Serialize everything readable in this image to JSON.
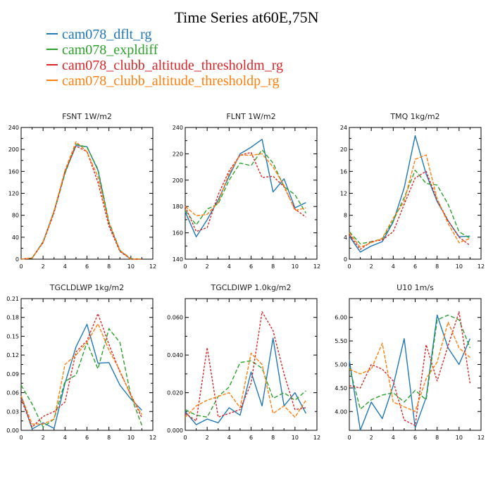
{
  "page": {
    "title": "Time Series at60E,75N"
  },
  "legend": [
    {
      "name": "cam078_dflt_rg",
      "color": "#1f77b4"
    },
    {
      "name": "cam078_expldiff",
      "color": "#2ca02c"
    },
    {
      "name": "cam078_clubb_altitude_thresholdm_rg",
      "color": "#d62728"
    },
    {
      "name": "cam078_clubb_altitude_thresholdp_rg",
      "color": "#ff7f0e"
    }
  ],
  "chart_data": [
    {
      "type": "line",
      "title": "FSNT   1W/m2",
      "x": [
        0,
        1,
        2,
        3,
        4,
        5,
        6,
        7,
        8,
        9,
        10,
        11
      ],
      "xlim": [
        0,
        12
      ],
      "xticks": [
        0,
        2,
        4,
        6,
        8,
        10,
        12
      ],
      "ylim": [
        0,
        240
      ],
      "yticks": [
        0,
        40,
        80,
        120,
        160,
        200,
        240
      ],
      "ytick_labels": [
        "0",
        "40",
        "80",
        "120",
        "160",
        "200",
        "240"
      ],
      "series": [
        {
          "name": "cam078_dflt_rg",
          "values": [
            0,
            2,
            32,
            88,
            158,
            207,
            205,
            162,
            65,
            15,
            0,
            0
          ]
        },
        {
          "name": "cam078_expldiff",
          "values": [
            0,
            2,
            31,
            86,
            156,
            210,
            204,
            164,
            68,
            16,
            1,
            0
          ]
        },
        {
          "name": "cam078_clubb_altitude_thresholdm_rg",
          "values": [
            0,
            2,
            30,
            85,
            160,
            206,
            196,
            140,
            60,
            14,
            0,
            0
          ]
        },
        {
          "name": "cam078_clubb_altitude_thresholdp_rg",
          "values": [
            0,
            2,
            31,
            88,
            162,
            214,
            196,
            150,
            66,
            16,
            0,
            0
          ]
        }
      ]
    },
    {
      "type": "line",
      "title": "FLNT   1W/m2",
      "x": [
        0,
        1,
        2,
        3,
        4,
        5,
        6,
        7,
        8,
        9,
        10,
        11
      ],
      "xlim": [
        0,
        12
      ],
      "xticks": [
        0,
        2,
        4,
        6,
        8,
        10,
        12
      ],
      "ylim": [
        140,
        240
      ],
      "yticks": [
        140,
        160,
        180,
        200,
        220,
        240
      ],
      "ytick_labels": [
        "140",
        "160",
        "180",
        "200",
        "220",
        "240"
      ],
      "series": [
        {
          "name": "cam078_dflt_rg",
          "values": [
            176,
            157,
            170,
            185,
            203,
            220,
            225,
            231,
            191,
            201,
            179,
            183
          ]
        },
        {
          "name": "cam078_expldiff",
          "values": [
            177,
            166,
            178,
            182,
            200,
            213,
            211,
            223,
            213,
            195,
            189,
            175
          ]
        },
        {
          "name": "cam078_clubb_altitude_thresholdm_rg",
          "values": [
            180,
            161,
            164,
            189,
            207,
            219,
            221,
            202,
            203,
            195,
            178,
            172
          ]
        },
        {
          "name": "cam078_clubb_altitude_thresholdp_rg",
          "values": [
            180,
            173,
            174,
            183,
            205,
            219,
            219,
            220,
            210,
            196,
            177,
            179
          ]
        }
      ]
    },
    {
      "type": "line",
      "title": "TMQ   1kg/m2",
      "x": [
        0,
        1,
        2,
        3,
        4,
        5,
        6,
        7,
        8,
        9,
        10,
        11
      ],
      "xlim": [
        0,
        12
      ],
      "xticks": [
        0,
        2,
        4,
        6,
        8,
        10,
        12
      ],
      "ylim": [
        0,
        24
      ],
      "yticks": [
        0,
        4,
        8,
        12,
        16,
        20,
        24
      ],
      "ytick_labels": [
        "0",
        "4",
        "8",
        "12",
        "16",
        "20",
        "24"
      ],
      "series": [
        {
          "name": "cam078_dflt_rg",
          "values": [
            4.2,
            1.3,
            2.4,
            3.2,
            6.8,
            13.0,
            22.5,
            15.5,
            10.5,
            7.0,
            4.1,
            4.2
          ]
        },
        {
          "name": "cam078_expldiff",
          "values": [
            5.0,
            2.8,
            3.2,
            3.7,
            7.0,
            11.2,
            16.2,
            13.8,
            13.5,
            10.0,
            5.0,
            3.8
          ]
        },
        {
          "name": "cam078_clubb_altitude_thresholdm_rg",
          "values": [
            4.4,
            1.8,
            3.2,
            3.5,
            5.0,
            10.0,
            14.8,
            16.0,
            10.8,
            7.0,
            4.0,
            2.5
          ]
        },
        {
          "name": "cam078_clubb_altitude_thresholdp_rg",
          "values": [
            4.8,
            2.2,
            3.0,
            3.8,
            7.5,
            10.5,
            18.2,
            19.0,
            11.0,
            6.5,
            3.0,
            3.8
          ]
        }
      ]
    },
    {
      "type": "line",
      "title": "TGCLDLWP   1kg/m2",
      "x": [
        0,
        1,
        2,
        3,
        4,
        5,
        6,
        7,
        8,
        9,
        10,
        11
      ],
      "xlim": [
        0,
        12
      ],
      "xticks": [
        0,
        2,
        4,
        6,
        8,
        10,
        12
      ],
      "ylim": [
        0,
        0.21
      ],
      "yticks": [
        0,
        0.03,
        0.06,
        0.09,
        0.12,
        0.15,
        0.18,
        0.21
      ],
      "ytick_labels": [
        "0.00",
        "0.03",
        "0.06",
        "0.09",
        "0.12",
        "0.15",
        "0.18",
        "0.21"
      ],
      "series": [
        {
          "name": "cam078_dflt_rg",
          "values": [
            0.055,
            0.002,
            0.012,
            0.003,
            0.075,
            0.133,
            0.169,
            0.107,
            0.108,
            0.072,
            0.05,
            0.032
          ]
        },
        {
          "name": "cam078_expldiff",
          "values": [
            0.072,
            0.042,
            0.005,
            0.018,
            0.078,
            0.088,
            0.14,
            0.098,
            0.162,
            0.14,
            0.055,
            0.008
          ]
        },
        {
          "name": "cam078_clubb_altitude_thresholdm_rg",
          "values": [
            0.05,
            0.005,
            0.022,
            0.03,
            0.045,
            0.125,
            0.143,
            0.186,
            0.137,
            0.093,
            0.057,
            0.02
          ]
        },
        {
          "name": "cam078_clubb_altitude_thresholdp_rg",
          "values": [
            0.055,
            0.01,
            0.01,
            0.018,
            0.105,
            0.12,
            0.14,
            0.17,
            0.128,
            0.095,
            0.055,
            0.025
          ]
        }
      ]
    },
    {
      "type": "line",
      "title": "TGCLDIWP   1.0kg/m2",
      "x": [
        0,
        1,
        2,
        3,
        4,
        5,
        6,
        7,
        8,
        9,
        10,
        11
      ],
      "xlim": [
        0,
        12
      ],
      "xticks": [
        0,
        2,
        4,
        6,
        8,
        10,
        12
      ],
      "ylim": [
        0,
        0.07
      ],
      "yticks": [
        0,
        0.02,
        0.04,
        0.06
      ],
      "ytick_labels": [
        "0.000",
        "0.020",
        "0.040",
        "0.060"
      ],
      "series": [
        {
          "name": "cam078_dflt_rg",
          "values": [
            0.01,
            0.003,
            0.006,
            0.004,
            0.012,
            0.008,
            0.031,
            0.013,
            0.049,
            0.013,
            0.02,
            0.009
          ]
        },
        {
          "name": "cam078_expldiff",
          "values": [
            0.011,
            0.008,
            0.007,
            0.018,
            0.023,
            0.036,
            0.037,
            0.033,
            0.017,
            0.02,
            0.016,
            0.021
          ]
        },
        {
          "name": "cam078_clubb_altitude_thresholdm_rg",
          "values": [
            0.009,
            0.005,
            0.044,
            0.007,
            0.009,
            0.011,
            0.025,
            0.063,
            0.053,
            0.03,
            0.011,
            0.012
          ]
        },
        {
          "name": "cam078_clubb_altitude_thresholdp_rg",
          "values": [
            0.007,
            0.013,
            0.016,
            0.018,
            0.02,
            0.012,
            0.041,
            0.035,
            0.009,
            0.013,
            0.007,
            0.016
          ]
        }
      ]
    },
    {
      "type": "line",
      "title": "U10   1m/s",
      "x": [
        0,
        1,
        2,
        3,
        4,
        5,
        6,
        7,
        8,
        9,
        10,
        11
      ],
      "xlim": [
        0,
        12
      ],
      "xticks": [
        0,
        2,
        4,
        6,
        8,
        10,
        12
      ],
      "ylim": [
        3.6,
        6.4
      ],
      "yticks": [
        4.0,
        4.5,
        5.0,
        5.5,
        6.0
      ],
      "ytick_labels": [
        "4.00",
        "4.50",
        "5.00",
        "5.50",
        "6.00"
      ],
      "series": [
        {
          "name": "cam078_dflt_rg",
          "values": [
            5.1,
            3.6,
            4.2,
            3.85,
            4.55,
            5.55,
            3.65,
            4.3,
            6.05,
            5.35,
            5.0,
            5.55
          ]
        },
        {
          "name": "cam078_expldiff",
          "values": [
            4.95,
            4.05,
            4.25,
            4.35,
            4.4,
            4.2,
            4.45,
            4.25,
            5.95,
            6.05,
            5.95,
            5.35
          ]
        },
        {
          "name": "cam078_clubb_altitude_thresholdm_rg",
          "values": [
            4.55,
            4.5,
            5.0,
            4.9,
            4.65,
            3.82,
            3.7,
            5.42,
            4.65,
            5.4,
            6.12,
            4.6
          ]
        },
        {
          "name": "cam078_clubb_altitude_thresholdp_rg",
          "values": [
            4.9,
            4.8,
            4.9,
            5.45,
            4.2,
            4.1,
            4.0,
            4.7,
            5.05,
            5.9,
            5.35,
            5.15
          ]
        }
      ]
    }
  ]
}
